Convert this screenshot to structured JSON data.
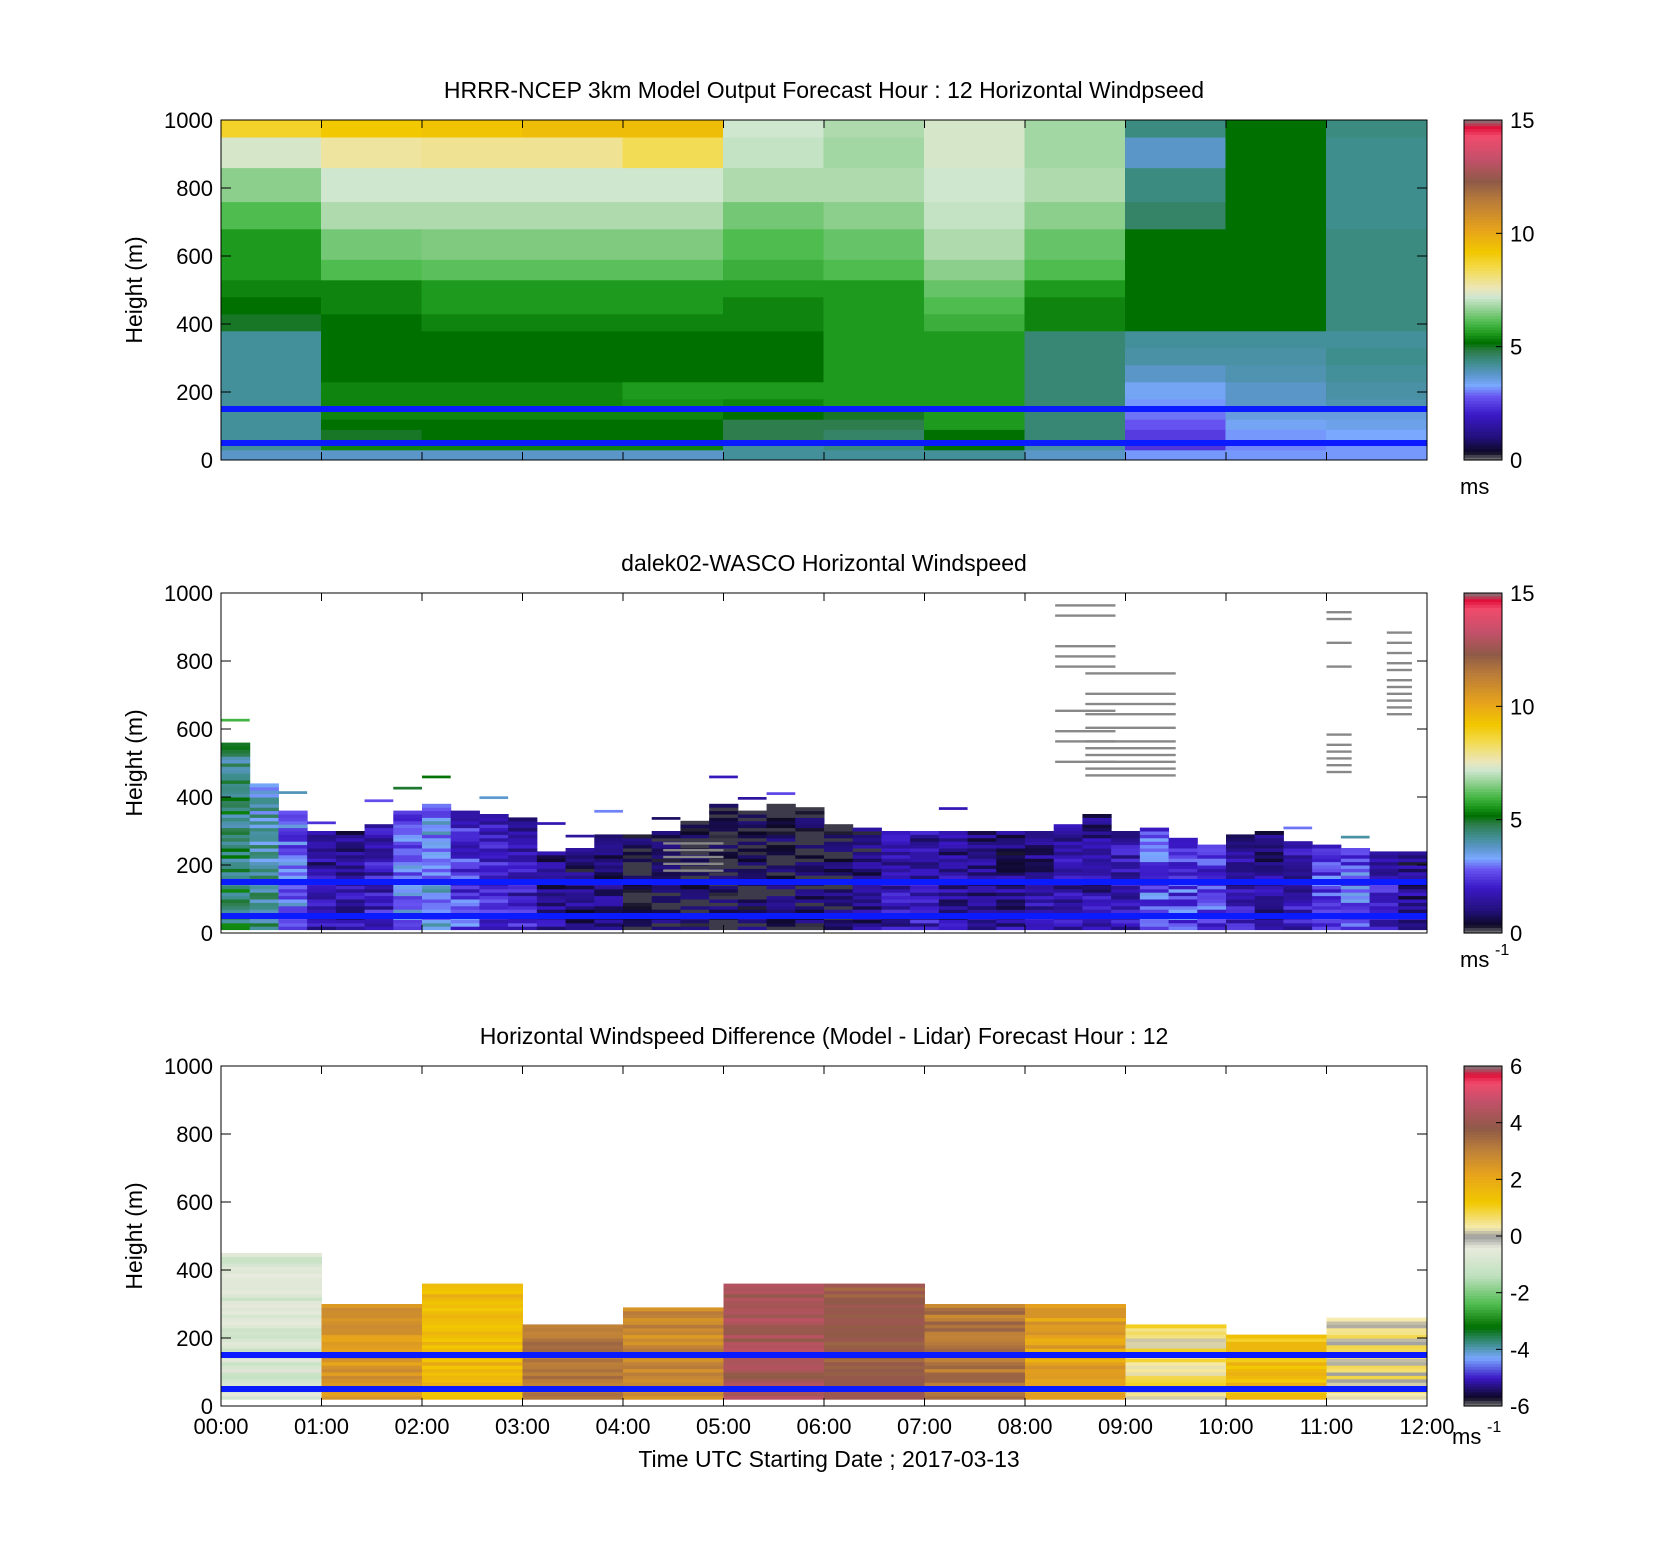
{
  "figure": {
    "xlabel": "Time UTC  Starting Date ; 2017-03-13",
    "x_ticks": [
      "00:00",
      "01:00",
      "02:00",
      "03:00",
      "04:00",
      "05:00",
      "06:00",
      "07:00",
      "08:00",
      "09:00",
      "10:00",
      "11:00",
      "12:00"
    ]
  },
  "colors": {
    "ref_line": "#0a1bff",
    "missing": "#888888"
  },
  "chart_data": [
    {
      "type": "heatmap",
      "title": "HRRR-NCEP 3km Model Output   Forecast Hour : 12 Horizontal Windpseed",
      "ylabel": "Height (m)",
      "xlim": [
        0,
        12
      ],
      "ylim": [
        0,
        1000
      ],
      "y_ticks": [
        "0",
        "200",
        "400",
        "600",
        "800",
        "1000"
      ],
      "grid": false,
      "colorbar": {
        "range": [
          0,
          15
        ],
        "ticks": [
          "0",
          "5",
          "10",
          "15"
        ],
        "unit": "ms"
      },
      "reference_lines_m": [
        50,
        150
      ],
      "bands_m": [
        0,
        30,
        60,
        90,
        120,
        150,
        180,
        230,
        280,
        330,
        380,
        430,
        480,
        530,
        590,
        680,
        760,
        860,
        950,
        1000
      ],
      "columns": [
        [
          3.8,
          4.2,
          4.2,
          4.2,
          4.2,
          4.2,
          4.2,
          4.2,
          4.2,
          4.2,
          5.0,
          5.2,
          5.4,
          5.6,
          5.6,
          6.1,
          6.6,
          7.3,
          8.8
        ],
        [
          3.8,
          5.4,
          5.0,
          5.2,
          5.4,
          5.4,
          5.4,
          5.2,
          5.2,
          5.2,
          5.2,
          5.4,
          5.4,
          6.1,
          6.4,
          6.9,
          7.2,
          7.8,
          9.2
        ],
        [
          3.8,
          5.4,
          5.2,
          5.2,
          5.4,
          5.4,
          5.4,
          5.2,
          5.2,
          5.2,
          5.4,
          5.6,
          5.6,
          6.2,
          6.5,
          6.9,
          7.2,
          7.9,
          9.3
        ],
        [
          3.8,
          5.4,
          5.2,
          5.2,
          5.4,
          5.4,
          5.4,
          5.2,
          5.2,
          5.2,
          5.4,
          5.6,
          5.6,
          6.2,
          6.5,
          6.9,
          7.2,
          7.9,
          9.5
        ],
        [
          3.8,
          5.4,
          5.2,
          5.2,
          5.4,
          5.5,
          5.6,
          5.2,
          5.2,
          5.2,
          5.4,
          5.6,
          5.6,
          6.2,
          6.5,
          6.9,
          7.2,
          8.4,
          9.5
        ],
        [
          4.2,
          4.2,
          4.8,
          4.8,
          5.2,
          5.4,
          5.6,
          5.2,
          5.2,
          5.2,
          5.4,
          5.4,
          5.6,
          5.9,
          6.1,
          6.4,
          6.9,
          7.1,
          7.2
        ],
        [
          4.2,
          4.4,
          4.6,
          4.8,
          5.0,
          5.6,
          5.6,
          5.6,
          5.6,
          5.6,
          5.6,
          5.6,
          5.6,
          6.1,
          6.3,
          6.6,
          6.9,
          6.8,
          6.9
        ],
        [
          4.2,
          5.2,
          5.2,
          5.6,
          5.6,
          5.6,
          5.6,
          5.6,
          5.6,
          5.6,
          5.9,
          6.1,
          6.3,
          6.6,
          6.9,
          7.1,
          7.2,
          7.3,
          7.3
        ],
        [
          3.8,
          4.1,
          4.5,
          4.5,
          4.5,
          4.5,
          4.5,
          4.5,
          4.5,
          4.5,
          5.4,
          5.4,
          5.6,
          6.1,
          6.3,
          6.6,
          6.9,
          6.8,
          6.8
        ],
        [
          3.2,
          2.4,
          2.5,
          2.8,
          3.0,
          3.2,
          3.4,
          3.8,
          4.1,
          4.2,
          5.2,
          5.2,
          5.2,
          5.2,
          5.2,
          4.6,
          4.4,
          3.8,
          4.4
        ],
        [
          3.2,
          3.1,
          3.2,
          3.4,
          3.6,
          3.8,
          3.8,
          4.0,
          4.1,
          4.2,
          5.2,
          5.2,
          5.2,
          5.2,
          5.2,
          5.2,
          5.2,
          5.2,
          5.2
        ],
        [
          3.2,
          3.2,
          3.3,
          3.5,
          3.6,
          4.0,
          4.1,
          4.2,
          4.3,
          4.2,
          4.4,
          4.4,
          4.4,
          4.4,
          4.4,
          4.3,
          4.3,
          4.3,
          4.4
        ]
      ]
    },
    {
      "type": "heatmap",
      "title": "dalek02-WASCO  Horizontal Windspeed",
      "ylabel": "Height (m)",
      "xlim": [
        0,
        12
      ],
      "ylim": [
        0,
        1000
      ],
      "y_ticks": [
        "0",
        "200",
        "400",
        "600",
        "800",
        "1000"
      ],
      "grid": false,
      "colorbar": {
        "range": [
          0,
          15
        ],
        "ticks": [
          "0",
          "5",
          "10",
          "15"
        ],
        "unit": "ms",
        "unit_superscript": "-1"
      },
      "reference_lines_m": [
        50,
        150
      ],
      "column_top_m": [
        560,
        440,
        360,
        300,
        300,
        320,
        360,
        380,
        360,
        350,
        340,
        240,
        250,
        290,
        290,
        300,
        330,
        380,
        360,
        380,
        370,
        320,
        310,
        300,
        300,
        300,
        300,
        300,
        300,
        320,
        350,
        300,
        310,
        280,
        260,
        290,
        300,
        270,
        260,
        250,
        240,
        240
      ],
      "column_mean_ms": [
        4.8,
        4.2,
        3.2,
        1.7,
        1.6,
        2.0,
        3.2,
        3.6,
        2.6,
        2.4,
        2.0,
        1.4,
        1.2,
        1.2,
        0.9,
        0.8,
        0.7,
        0.6,
        0.7,
        0.7,
        0.7,
        0.8,
        1.2,
        1.7,
        1.9,
        1.6,
        1.5,
        1.4,
        1.6,
        1.7,
        1.6,
        1.9,
        2.9,
        2.7,
        2.6,
        1.8,
        1.5,
        1.9,
        2.8,
        3.0,
        2.1,
        1.4
      ],
      "missing_gate_rows_m": [
        {
          "from_h": 8.3,
          "to_h": 8.9,
          "heights": [
            500,
            560,
            590,
            650,
            780,
            810,
            840,
            930,
            960
          ]
        },
        {
          "from_h": 8.6,
          "to_h": 9.5,
          "heights": [
            460,
            480,
            500,
            520,
            540,
            560,
            600,
            640,
            670,
            700,
            760
          ]
        },
        {
          "from_h": 11.0,
          "to_h": 11.25,
          "heights": [
            470,
            490,
            510,
            530,
            550,
            580,
            780,
            850,
            920,
            940
          ]
        },
        {
          "from_h": 11.6,
          "to_h": 11.85,
          "heights": [
            640,
            660,
            680,
            700,
            720,
            740,
            770,
            790,
            820,
            850,
            880
          ]
        },
        {
          "from_h": 4.4,
          "to_h": 5.0,
          "heights": [
            180,
            200,
            220,
            240,
            260
          ]
        }
      ]
    },
    {
      "type": "heatmap",
      "title": "Horizontal Windspeed Difference (Model - Lidar) Forecast Hour : 12",
      "ylabel": "Height (m)",
      "xlim": [
        0,
        12
      ],
      "ylim": [
        0,
        1000
      ],
      "y_ticks": [
        "0",
        "200",
        "400",
        "600",
        "800",
        "1000"
      ],
      "grid": false,
      "colorbar": {
        "range": [
          -6,
          6
        ],
        "ticks": [
          "-6",
          "-4",
          "-2",
          "0",
          "2",
          "4",
          "6"
        ],
        "unit": "ms",
        "unit_superscript": "-1"
      },
      "reference_lines_m": [
        50,
        150
      ],
      "hourly_top_m": [
        450,
        300,
        360,
        240,
        290,
        360,
        360,
        300,
        300,
        240,
        210,
        260
      ],
      "hourly_mean_ms": [
        -0.8,
        2.5,
        1.6,
        3.2,
        2.8,
        4.2,
        3.8,
        3.2,
        2.2,
        0.6,
        1.4,
        0.4
      ]
    }
  ]
}
